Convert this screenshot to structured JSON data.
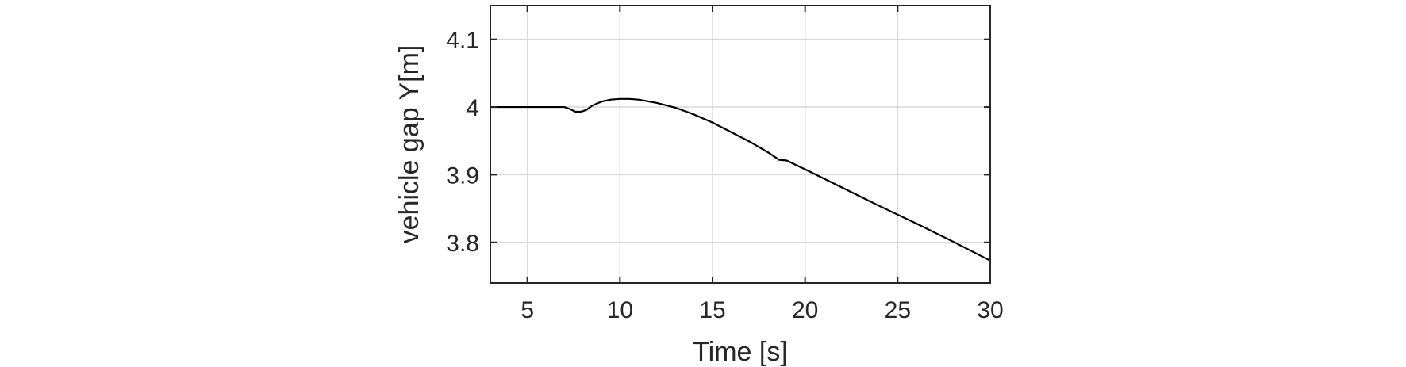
{
  "chart_data": {
    "type": "line",
    "title": "",
    "xlabel": "Time [s]",
    "ylabel": "vehicle gap Y[m]",
    "xlim": [
      3,
      30
    ],
    "ylim": [
      3.74,
      4.15
    ],
    "xticks": [
      5,
      10,
      15,
      20,
      25,
      30
    ],
    "xtick_labels": [
      "5",
      "10",
      "15",
      "20",
      "25",
      "30"
    ],
    "yticks": [
      3.8,
      3.9,
      4.0,
      4.1
    ],
    "ytick_labels": [
      "3.8",
      "3.9",
      "4",
      "4.1"
    ],
    "grid": true,
    "legend": false,
    "series": [
      {
        "color": "#000000",
        "x": [
          3,
          4,
          5,
          6,
          7,
          7.3,
          7.6,
          7.9,
          8.2,
          8.5,
          9,
          9.5,
          10,
          10.5,
          11,
          12,
          13,
          14,
          15,
          16,
          17,
          18,
          18.6,
          19,
          20,
          22,
          24,
          26,
          28,
          30
        ],
        "y": [
          4.0,
          4.0,
          4.0,
          4.0,
          4.0,
          3.997,
          3.993,
          3.993,
          3.996,
          4.002,
          4.008,
          4.011,
          4.012,
          4.012,
          4.011,
          4.006,
          3.999,
          3.989,
          3.977,
          3.963,
          3.949,
          3.933,
          3.922,
          3.921,
          3.908,
          3.881,
          3.854,
          3.828,
          3.801,
          3.773
        ]
      }
    ]
  }
}
